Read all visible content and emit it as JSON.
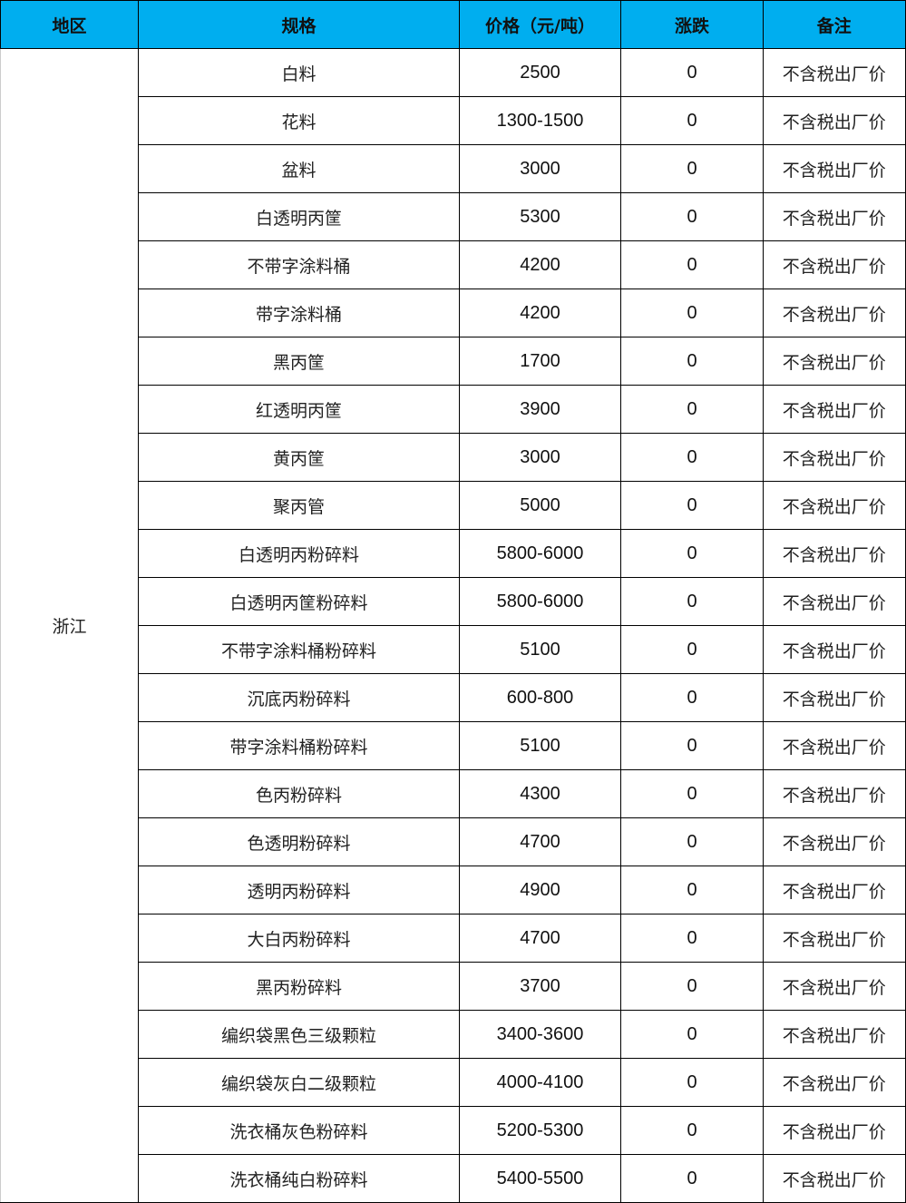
{
  "headers": [
    "地区",
    "规格",
    "价格（元/吨）",
    "涨跌",
    "备注"
  ],
  "region": "浙江",
  "header_color": "#00AEEF",
  "rows": [
    {
      "spec": "白料",
      "price": "2500",
      "change": "0",
      "note": "不含税出厂价"
    },
    {
      "spec": "花料",
      "price": "1300-1500",
      "change": "0",
      "note": "不含税出厂价"
    },
    {
      "spec": "盆料",
      "price": "3000",
      "change": "0",
      "note": "不含税出厂价"
    },
    {
      "spec": "白透明丙筐",
      "price": "5300",
      "change": "0",
      "note": "不含税出厂价"
    },
    {
      "spec": "不带字涂料桶",
      "price": "4200",
      "change": "0",
      "note": "不含税出厂价"
    },
    {
      "spec": "带字涂料桶",
      "price": "4200",
      "change": "0",
      "note": "不含税出厂价"
    },
    {
      "spec": "黑丙筐",
      "price": "1700",
      "change": "0",
      "note": "不含税出厂价"
    },
    {
      "spec": "红透明丙筐",
      "price": "3900",
      "change": "0",
      "note": "不含税出厂价"
    },
    {
      "spec": "黄丙筐",
      "price": "3000",
      "change": "0",
      "note": "不含税出厂价"
    },
    {
      "spec": "聚丙管",
      "price": "5000",
      "change": "0",
      "note": "不含税出厂价"
    },
    {
      "spec": "白透明丙粉碎料",
      "price": "5800-6000",
      "change": "0",
      "note": "不含税出厂价"
    },
    {
      "spec": "白透明丙筐粉碎料",
      "price": "5800-6000",
      "change": "0",
      "note": "不含税出厂价"
    },
    {
      "spec": "不带字涂料桶粉碎料",
      "price": "5100",
      "change": "0",
      "note": "不含税出厂价"
    },
    {
      "spec": "沉底丙粉碎料",
      "price": "600-800",
      "change": "0",
      "note": "不含税出厂价"
    },
    {
      "spec": "带字涂料桶粉碎料",
      "price": "5100",
      "change": "0",
      "note": "不含税出厂价"
    },
    {
      "spec": "色丙粉碎料",
      "price": "4300",
      "change": "0",
      "note": "不含税出厂价"
    },
    {
      "spec": "色透明粉碎料",
      "price": "4700",
      "change": "0",
      "note": "不含税出厂价"
    },
    {
      "spec": "透明丙粉碎料",
      "price": "4900",
      "change": "0",
      "note": "不含税出厂价"
    },
    {
      "spec": "大白丙粉碎料",
      "price": "4700",
      "change": "0",
      "note": "不含税出厂价"
    },
    {
      "spec": "黑丙粉碎料",
      "price": "3700",
      "change": "0",
      "note": "不含税出厂价"
    },
    {
      "spec": "编织袋黑色三级颗粒",
      "price": "3400-3600",
      "change": "0",
      "note": "不含税出厂价"
    },
    {
      "spec": "编织袋灰白二级颗粒",
      "price": "4000-4100",
      "change": "0",
      "note": "不含税出厂价"
    },
    {
      "spec": "洗衣桶灰色粉碎料",
      "price": "5200-5300",
      "change": "0",
      "note": "不含税出厂价"
    },
    {
      "spec": "洗衣桶纯白粉碎料",
      "price": "5400-5500",
      "change": "0",
      "note": "不含税出厂价"
    }
  ]
}
